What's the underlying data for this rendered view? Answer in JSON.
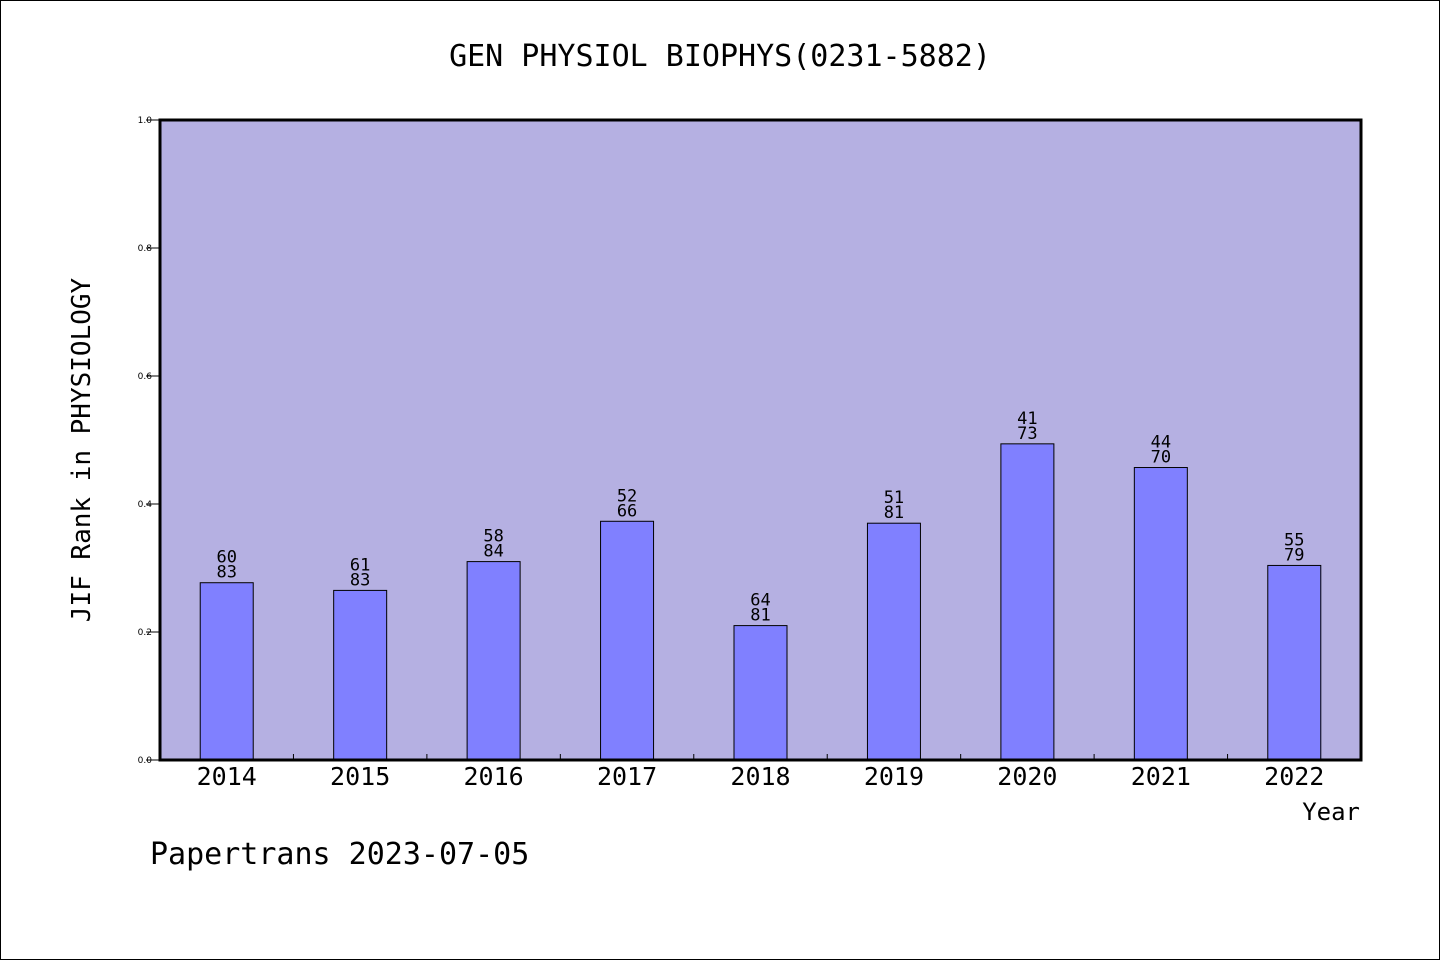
{
  "chart_data": {
    "type": "bar",
    "title": "GEN PHYSIOL BIOPHYS(0231-5882)",
    "xlabel": "Year",
    "ylabel": "JIF Rank in PHYSIOLOGY",
    "footer": "Papertrans 2023-07-05",
    "ylim": [
      0,
      1
    ],
    "yticks": [
      "0.0",
      "0.2",
      "0.4",
      "0.6",
      "0.8",
      "1.0"
    ],
    "ytick_values": [
      0,
      0.2,
      0.4,
      0.6,
      0.8,
      1.0
    ],
    "categories": [
      "2014",
      "2015",
      "2016",
      "2017",
      "2018",
      "2019",
      "2020",
      "2021",
      "2022"
    ],
    "values": [
      0.277,
      0.265,
      0.31,
      0.373,
      0.21,
      0.37,
      0.494,
      0.457,
      0.304
    ],
    "labels_top": [
      "60",
      "61",
      "58",
      "52",
      "64",
      "51",
      "41",
      "44",
      "55"
    ],
    "labels_bottom": [
      "83",
      "83",
      "84",
      "66",
      "81",
      "81",
      "73",
      "70",
      "79"
    ],
    "colors": {
      "plot_background": "#b5b0e2",
      "bar_fill": "#8080ff",
      "bar_stroke": "#000000"
    },
    "grid": false
  }
}
